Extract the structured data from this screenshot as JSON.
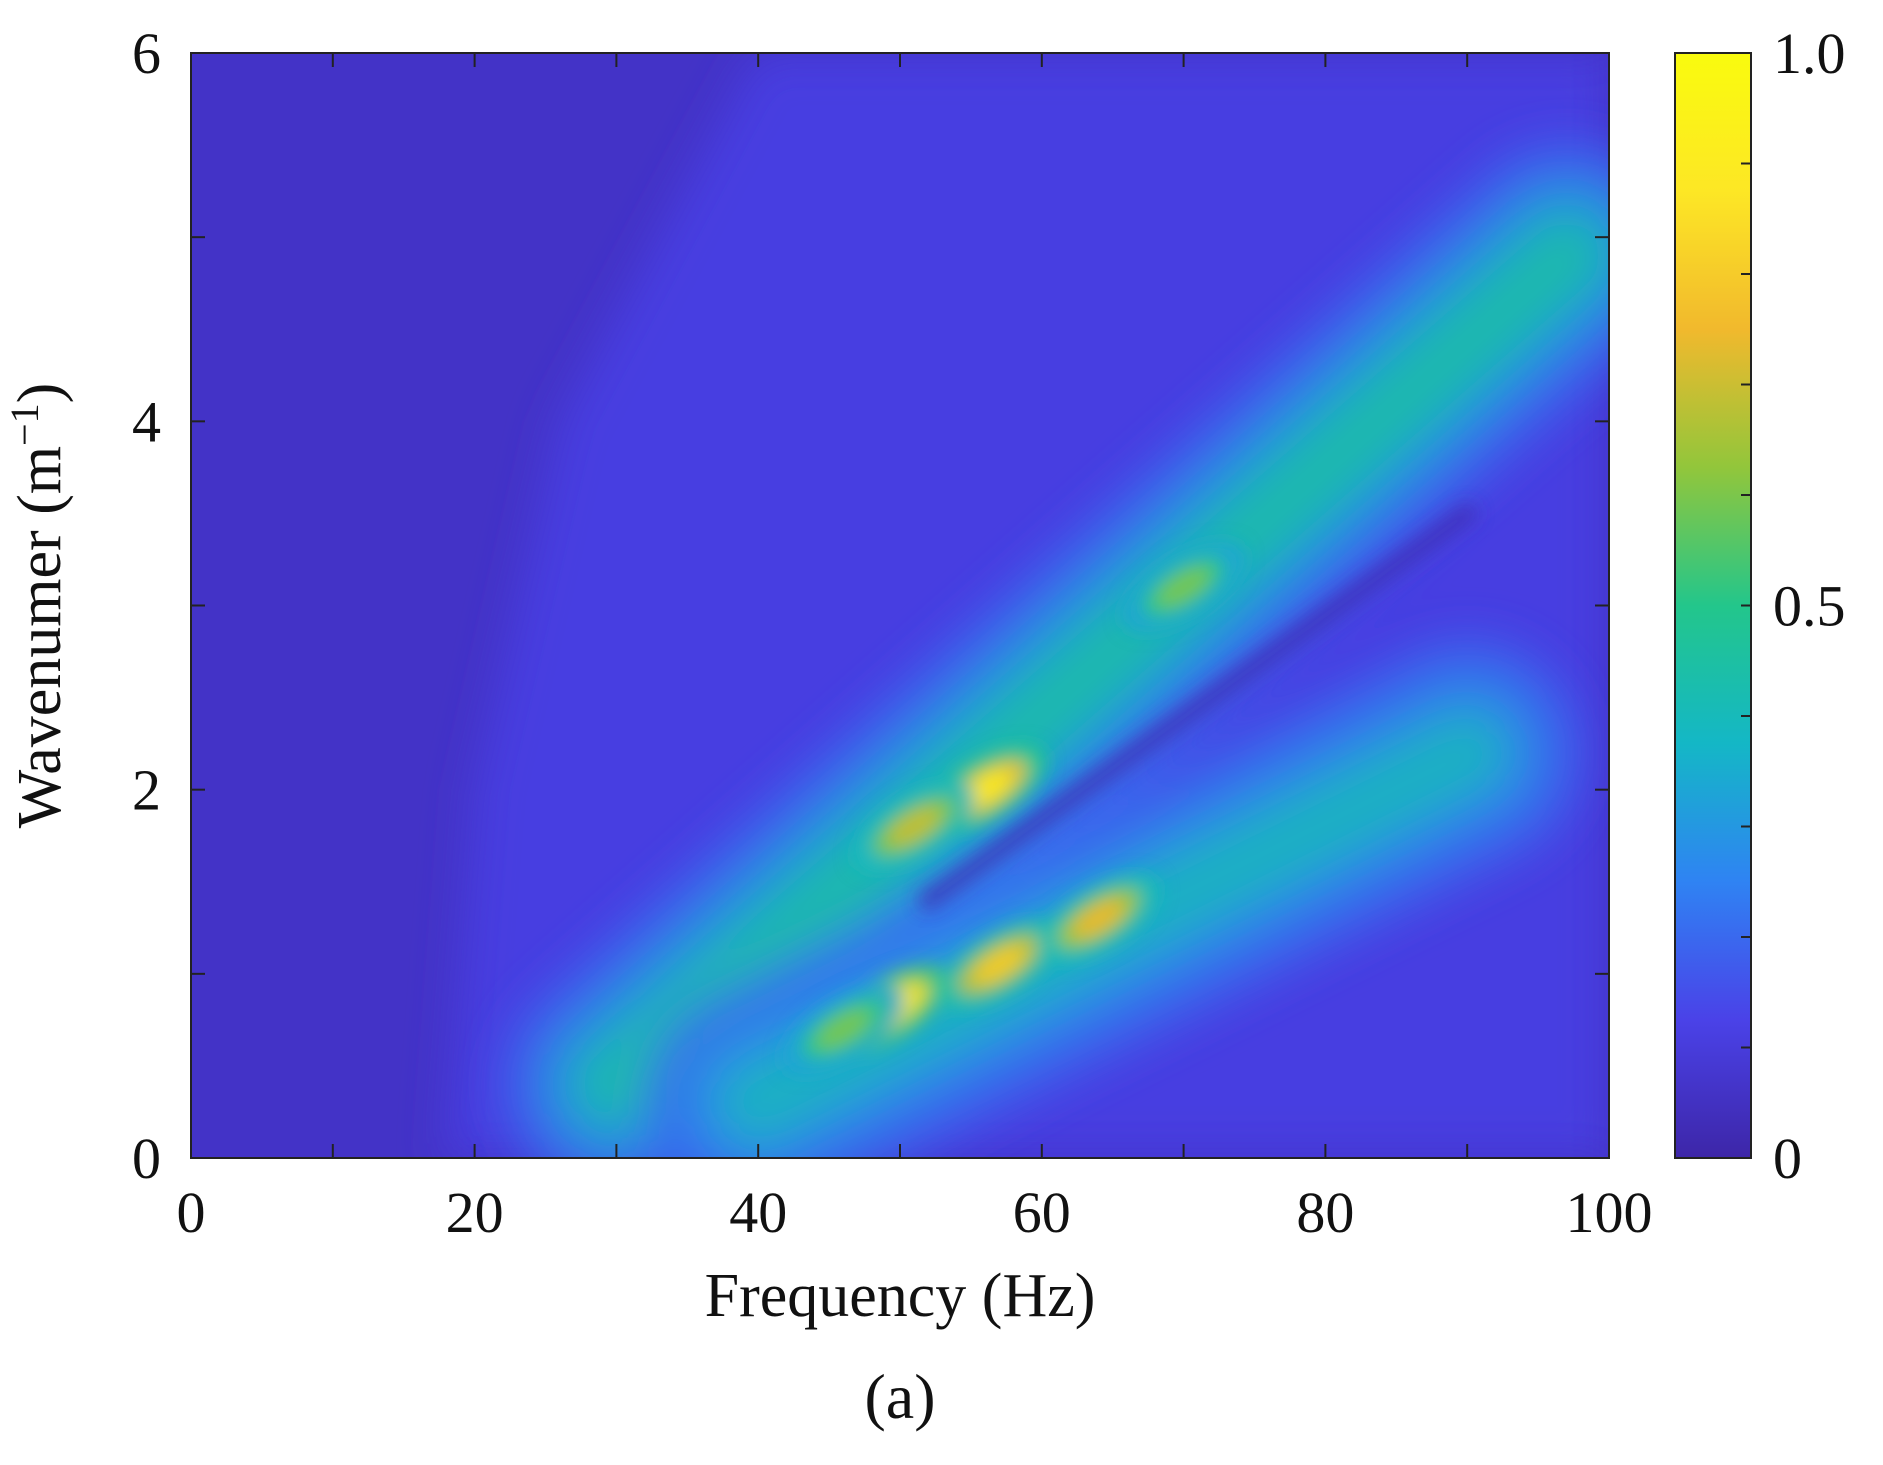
{
  "chart_data": {
    "type": "heatmap",
    "xlabel": "Frequency (Hz)",
    "ylabel": "Wavenumer (m⁻¹)",
    "ylabel_base": "Wavenumer (m",
    "ylabel_sup": "−1",
    "ylabel_close": ")",
    "panel_label": "(a)",
    "xlim": [
      0,
      100
    ],
    "ylim": [
      0,
      6
    ],
    "x_ticks": [
      0,
      20,
      40,
      60,
      80,
      100
    ],
    "y_ticks": [
      0,
      2,
      4,
      6
    ],
    "x_tick_labels": [
      "0",
      "20",
      "40",
      "60",
      "80",
      "100"
    ],
    "y_tick_labels": [
      "0",
      "2",
      "4",
      "6"
    ],
    "colorbar": {
      "range": [
        0,
        1.0
      ],
      "ticks": [
        0,
        0.5,
        1.0
      ],
      "tick_labels": [
        "0",
        "0.5",
        "1.0"
      ],
      "colormap": "parula",
      "colors": [
        "#3d26a8",
        "#4a42e8",
        "#2f83f3",
        "#14b7c6",
        "#23c68b",
        "#92c63b",
        "#f1b92d",
        "#fde725",
        "#f9fb0e"
      ]
    },
    "background_level": 0.06,
    "ridges": [
      {
        "name": "upper branch",
        "from": [
          30,
          0.4
        ],
        "to": [
          97,
          4.9
        ],
        "peak_level": 0.45
      },
      {
        "name": "lower branch",
        "from": [
          40,
          0.3
        ],
        "to": [
          90,
          2.2
        ],
        "peak_level": 0.4
      }
    ],
    "hotspots": [
      {
        "x": 49,
        "y": 0.8,
        "level": 1.0
      },
      {
        "x": 56,
        "y": 2.0,
        "level": 0.9
      },
      {
        "x": 57,
        "y": 1.05,
        "level": 0.8
      },
      {
        "x": 64,
        "y": 1.3,
        "level": 0.75
      },
      {
        "x": 51,
        "y": 1.8,
        "level": 0.7
      },
      {
        "x": 70,
        "y": 3.1,
        "level": 0.6
      },
      {
        "x": 46,
        "y": 0.7,
        "level": 0.6
      }
    ]
  }
}
